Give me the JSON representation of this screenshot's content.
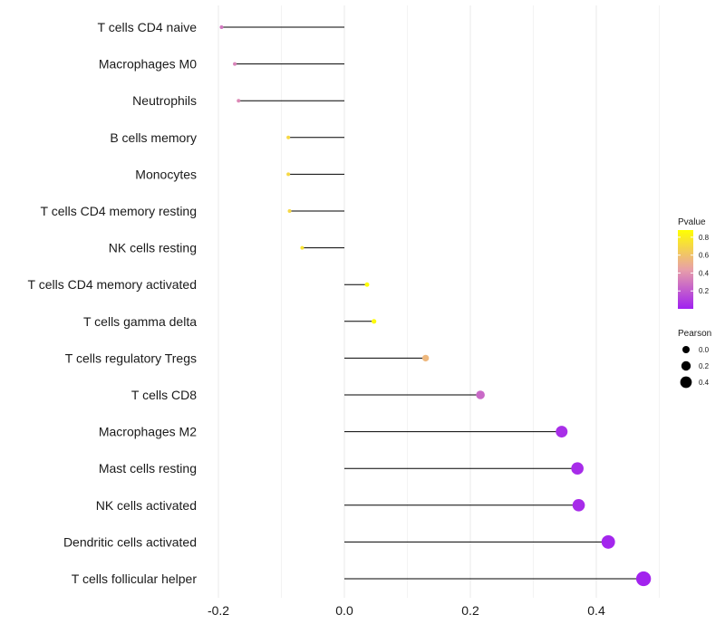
{
  "chart_data": {
    "type": "lollipop",
    "title": "",
    "xlabel": "",
    "ylabel": "",
    "xlim": [
      -0.22,
      0.5
    ],
    "x_ticks": [
      -0.2,
      0.0,
      0.2,
      0.4
    ],
    "x_tick_labels": [
      "-0.2",
      "0.0",
      "0.2",
      "0.4"
    ],
    "categories": [
      "T cells CD4 naive",
      "Macrophages M0",
      "Neutrophils",
      "B cells memory",
      "Monocytes",
      "T cells CD4 memory resting",
      "NK cells resting",
      "T cells CD4 memory activated",
      "T cells gamma delta",
      "T cells regulatory  Tregs",
      "T cells CD8",
      "Macrophages M2",
      "Mast cells resting",
      "NK cells activated",
      "Dendritic cells activated",
      "T cells follicular helper"
    ],
    "pearson": [
      -0.195,
      -0.174,
      -0.168,
      -0.089,
      -0.089,
      -0.087,
      -0.067,
      0.036,
      0.047,
      0.129,
      0.216,
      0.345,
      0.37,
      0.372,
      0.419,
      0.475
    ],
    "pvalue": [
      0.3,
      0.34,
      0.36,
      0.7,
      0.7,
      0.7,
      0.75,
      0.87,
      0.86,
      0.55,
      0.25,
      0.05,
      0.04,
      0.04,
      0.02,
      0.01
    ],
    "legend": {
      "color": {
        "title": "Pvalue",
        "ticks": [
          0.2,
          0.4,
          0.6,
          0.8
        ],
        "tick_labels": [
          "0.2",
          "0.4",
          "0.6",
          "0.8"
        ],
        "range": [
          0.0,
          0.88
        ],
        "low_color": "#a020f0",
        "mid_color": "#e8a0a8",
        "high_color": "#ffff00"
      },
      "size": {
        "title": "Pearson",
        "values": [
          0.0,
          0.2,
          0.4
        ],
        "labels": [
          "0.0",
          "0.2",
          "0.4"
        ]
      }
    },
    "gridline_color": "#ebebeb",
    "segment_color": "#000000"
  }
}
